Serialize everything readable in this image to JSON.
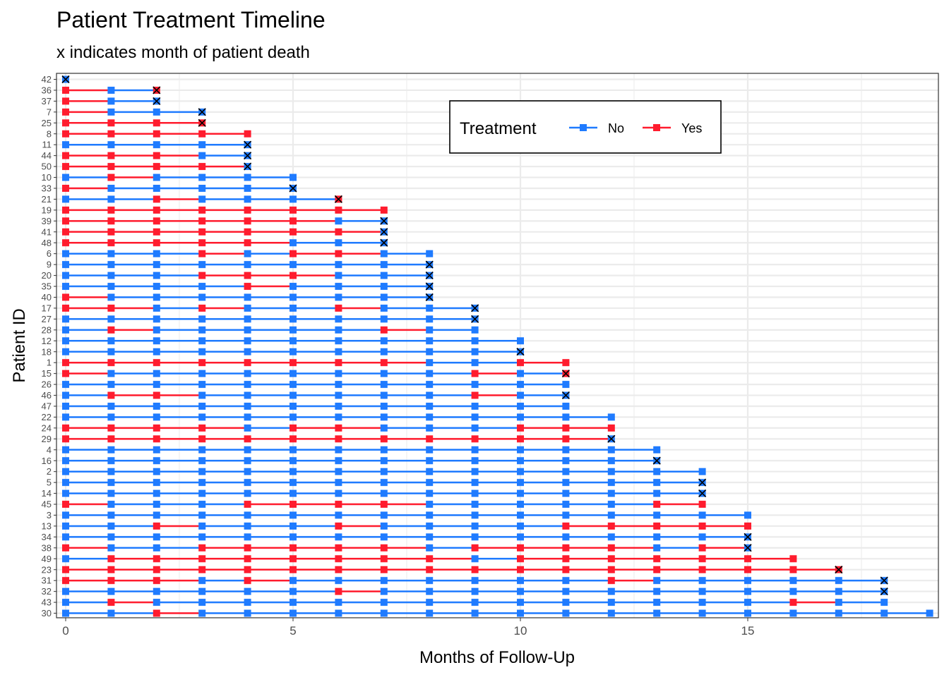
{
  "chart_data": {
    "type": "line",
    "title": "Patient Treatment Timeline",
    "subtitle": "x indicates month of patient death",
    "xlabel": "Months of Follow-Up",
    "ylabel": "Patient ID",
    "xlim": [
      -0.2,
      19.2
    ],
    "x_ticks": [
      0,
      5,
      10,
      15
    ],
    "grid": true,
    "legend": {
      "title": "Treatment",
      "placement": "top-right inside",
      "entries": [
        {
          "label": "No",
          "color": "#1f7bff"
        },
        {
          "label": "Yes",
          "color": "#ff1c2e"
        }
      ]
    },
    "colors": {
      "No": "#1f7bff",
      "Yes": "#ff1c2e",
      "death": "#000000"
    },
    "patients": [
      {
        "id": "42",
        "months": 0,
        "died": true,
        "yes_months": []
      },
      {
        "id": "36",
        "months": 2,
        "died": true,
        "yes_months": [
          0,
          2
        ]
      },
      {
        "id": "37",
        "months": 2,
        "died": true,
        "yes_months": [
          0
        ]
      },
      {
        "id": "7",
        "months": 3,
        "died": true,
        "yes_months": [
          0
        ]
      },
      {
        "id": "25",
        "months": 3,
        "died": true,
        "yes_months": [
          0,
          1,
          2,
          3
        ]
      },
      {
        "id": "8",
        "months": 4,
        "died": false,
        "yes_months": [
          0,
          1,
          2,
          3,
          4
        ]
      },
      {
        "id": "11",
        "months": 4,
        "died": true,
        "yes_months": []
      },
      {
        "id": "44",
        "months": 4,
        "died": true,
        "yes_months": [
          0,
          1,
          2
        ]
      },
      {
        "id": "50",
        "months": 4,
        "died": true,
        "yes_months": [
          0,
          1,
          2,
          3
        ]
      },
      {
        "id": "10",
        "months": 5,
        "died": false,
        "yes_months": [
          1
        ]
      },
      {
        "id": "33",
        "months": 5,
        "died": true,
        "yes_months": [
          0
        ]
      },
      {
        "id": "21",
        "months": 6,
        "died": true,
        "yes_months": [
          2,
          6
        ]
      },
      {
        "id": "19",
        "months": 7,
        "died": false,
        "yes_months": [
          0,
          1,
          2,
          3,
          4,
          5,
          6,
          7
        ]
      },
      {
        "id": "39",
        "months": 7,
        "died": true,
        "yes_months": [
          0,
          1,
          2,
          3,
          4,
          5
        ]
      },
      {
        "id": "41",
        "months": 7,
        "died": true,
        "yes_months": [
          0,
          1,
          2,
          3,
          4,
          5,
          6
        ]
      },
      {
        "id": "48",
        "months": 7,
        "died": true,
        "yes_months": [
          0,
          1,
          2,
          3,
          4
        ]
      },
      {
        "id": "6",
        "months": 8,
        "died": false,
        "yes_months": [
          3,
          5,
          6
        ]
      },
      {
        "id": "9",
        "months": 8,
        "died": true,
        "yes_months": []
      },
      {
        "id": "20",
        "months": 8,
        "died": true,
        "yes_months": [
          3,
          4,
          5
        ]
      },
      {
        "id": "35",
        "months": 8,
        "died": true,
        "yes_months": [
          4
        ]
      },
      {
        "id": "40",
        "months": 8,
        "died": true,
        "yes_months": [
          0
        ]
      },
      {
        "id": "17",
        "months": 9,
        "died": true,
        "yes_months": [
          0,
          1,
          3,
          6
        ]
      },
      {
        "id": "27",
        "months": 9,
        "died": true,
        "yes_months": []
      },
      {
        "id": "28",
        "months": 9,
        "died": false,
        "yes_months": [
          1,
          7
        ]
      },
      {
        "id": "12",
        "months": 10,
        "died": false,
        "yes_months": []
      },
      {
        "id": "18",
        "months": 10,
        "died": true,
        "yes_months": []
      },
      {
        "id": "1",
        "months": 11,
        "died": false,
        "yes_months": [
          0,
          1,
          2,
          3,
          4,
          5,
          6,
          7,
          10,
          11
        ]
      },
      {
        "id": "15",
        "months": 11,
        "died": true,
        "yes_months": [
          0,
          9,
          11
        ]
      },
      {
        "id": "26",
        "months": 11,
        "died": false,
        "yes_months": []
      },
      {
        "id": "46",
        "months": 11,
        "died": true,
        "yes_months": [
          1,
          2,
          9
        ]
      },
      {
        "id": "47",
        "months": 11,
        "died": false,
        "yes_months": []
      },
      {
        "id": "22",
        "months": 12,
        "died": false,
        "yes_months": []
      },
      {
        "id": "24",
        "months": 12,
        "died": false,
        "yes_months": [
          0,
          1,
          2,
          3,
          5,
          6,
          10,
          11,
          12
        ]
      },
      {
        "id": "29",
        "months": 12,
        "died": true,
        "yes_months": [
          0,
          1,
          2,
          3,
          4,
          5,
          6,
          7,
          8,
          9,
          10,
          11
        ]
      },
      {
        "id": "4",
        "months": 13,
        "died": false,
        "yes_months": []
      },
      {
        "id": "16",
        "months": 13,
        "died": true,
        "yes_months": []
      },
      {
        "id": "2",
        "months": 14,
        "died": false,
        "yes_months": []
      },
      {
        "id": "5",
        "months": 14,
        "died": true,
        "yes_months": []
      },
      {
        "id": "14",
        "months": 14,
        "died": true,
        "yes_months": []
      },
      {
        "id": "45",
        "months": 14,
        "died": false,
        "yes_months": [
          0,
          4,
          5,
          6,
          7,
          13,
          14
        ]
      },
      {
        "id": "3",
        "months": 15,
        "died": false,
        "yes_months": []
      },
      {
        "id": "13",
        "months": 15,
        "died": false,
        "yes_months": [
          2,
          6,
          11,
          12,
          13,
          14,
          15
        ]
      },
      {
        "id": "34",
        "months": 15,
        "died": true,
        "yes_months": []
      },
      {
        "id": "38",
        "months": 15,
        "died": true,
        "yes_months": [
          0,
          3,
          4,
          5,
          6,
          7,
          9,
          10,
          11,
          12,
          14
        ]
      },
      {
        "id": "49",
        "months": 16,
        "died": false,
        "yes_months": [
          1,
          2,
          3,
          4,
          5,
          6,
          7,
          8,
          10,
          11,
          12,
          13,
          14,
          15,
          16
        ]
      },
      {
        "id": "23",
        "months": 17,
        "died": true,
        "yes_months": [
          0,
          1,
          2,
          3,
          4,
          5,
          6,
          7,
          8,
          9,
          10,
          11,
          12,
          13,
          14,
          15,
          16,
          17
        ]
      },
      {
        "id": "31",
        "months": 18,
        "died": true,
        "yes_months": [
          0,
          1,
          2,
          4,
          12
        ]
      },
      {
        "id": "32",
        "months": 18,
        "died": true,
        "yes_months": [
          6
        ]
      },
      {
        "id": "43",
        "months": 18,
        "died": false,
        "yes_months": [
          1,
          16
        ]
      },
      {
        "id": "30",
        "months": 19,
        "died": false,
        "yes_months": [
          2
        ]
      }
    ]
  }
}
